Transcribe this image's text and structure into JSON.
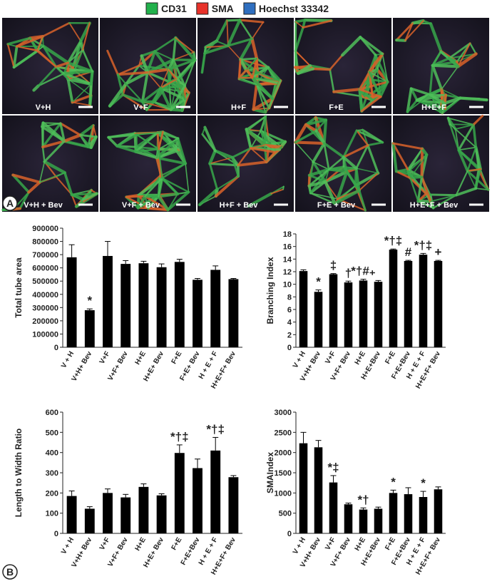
{
  "legend": [
    {
      "label": "CD31",
      "color": "#22b14c"
    },
    {
      "label": "SMA",
      "color": "#e8322a"
    },
    {
      "label": "Hoechst 33342",
      "color": "#2f6fc0"
    }
  ],
  "panel_a": {
    "letter": "A",
    "images": [
      "V+H",
      "V+F",
      "H+F",
      "F+E",
      "H+E+F",
      "V+H + Bev",
      "V+F + Bev",
      "H+F + Bev",
      "F+E + Bev",
      "H+E+F + Bev"
    ]
  },
  "panel_b": {
    "letter": "B"
  },
  "chart_data": [
    {
      "type": "bar",
      "y_label": "Total tube area",
      "color": "#000000",
      "categories": [
        "V + H",
        "V+H+ Bev",
        "V+F",
        "V+F+ Bev",
        "H+E",
        "H+E+ Bev",
        "F+E",
        "F+E+ Bev",
        "H + E + F",
        "H+E+F+ Bev"
      ],
      "values": [
        680000,
        280000,
        690000,
        630000,
        635000,
        605000,
        645000,
        510000,
        585000,
        515000
      ],
      "errors": [
        95000,
        10000,
        110000,
        25000,
        15000,
        25000,
        20000,
        10000,
        30000,
        5000
      ],
      "annotations": [
        null,
        "*",
        null,
        null,
        null,
        null,
        null,
        null,
        null,
        null
      ],
      "ylim": [
        0,
        900000
      ],
      "yticks": [
        0,
        100000,
        200000,
        300000,
        400000,
        500000,
        600000,
        700000,
        800000,
        900000
      ]
    },
    {
      "type": "bar",
      "y_label": "Branching Index",
      "color": "#000000",
      "categories": [
        "V + H",
        "V+H+ Bev",
        "V+F",
        "V+F+ Bev",
        "H+E",
        "H+E+Bev",
        "F+E",
        "F+E+Bev",
        "H + E + F",
        "H+E+F+ Bev"
      ],
      "values": [
        12.1,
        8.8,
        11.6,
        10.3,
        10.6,
        10.4,
        15.5,
        13.7,
        14.7,
        13.7
      ],
      "errors": [
        0.2,
        0.3,
        0.1,
        0.2,
        0.2,
        0.2,
        0.1,
        0.1,
        0.2,
        0.1
      ],
      "annotations": [
        null,
        "*",
        "‡",
        "†",
        "*†#₊",
        null,
        "*†‡",
        "#",
        "*†‡",
        "+"
      ],
      "ylim": [
        0,
        18
      ],
      "yticks": [
        0,
        2,
        4,
        6,
        8,
        10,
        12,
        14,
        16,
        18
      ]
    },
    {
      "type": "bar",
      "y_label": "Length to Width Ratio",
      "color": "#000000",
      "categories": [
        "V + H",
        "V+H+ Bev",
        "V+F",
        "V+F+ Bev",
        "H+E",
        "H+E+ Bev",
        "F+E",
        "F+E+Bev",
        "H + E + F",
        "H+E+F+ Bev"
      ],
      "values": [
        185,
        122,
        200,
        178,
        230,
        188,
        398,
        323,
        410,
        278
      ],
      "errors": [
        25,
        10,
        20,
        15,
        15,
        8,
        40,
        45,
        65,
        8
      ],
      "annotations": [
        null,
        null,
        null,
        null,
        null,
        null,
        "*†‡",
        null,
        "*†‡",
        null
      ],
      "ylim": [
        0,
        600
      ],
      "yticks": [
        0,
        100,
        200,
        300,
        400,
        500,
        600
      ]
    },
    {
      "type": "bar",
      "y_label": "SMAIndex",
      "color": "#000000",
      "categories": [
        "V + H",
        "V+H+ Bev",
        "V+F",
        "V+F+ Bev",
        "H+E",
        "H+E+Bev",
        "F+E",
        "F+E+Bev",
        "H + E + F",
        "H+E+F+ Bev"
      ],
      "values": [
        2230,
        2130,
        1260,
        720,
        590,
        610,
        1000,
        970,
        900,
        1090
      ],
      "errors": [
        270,
        170,
        170,
        30,
        40,
        40,
        70,
        160,
        140,
        60
      ],
      "annotations": [
        null,
        null,
        "*‡",
        null,
        "*†",
        null,
        "*",
        null,
        "*",
        null
      ],
      "ylim": [
        0,
        3000
      ],
      "yticks": [
        0,
        500,
        1000,
        1500,
        2000,
        2500,
        3000
      ]
    }
  ]
}
